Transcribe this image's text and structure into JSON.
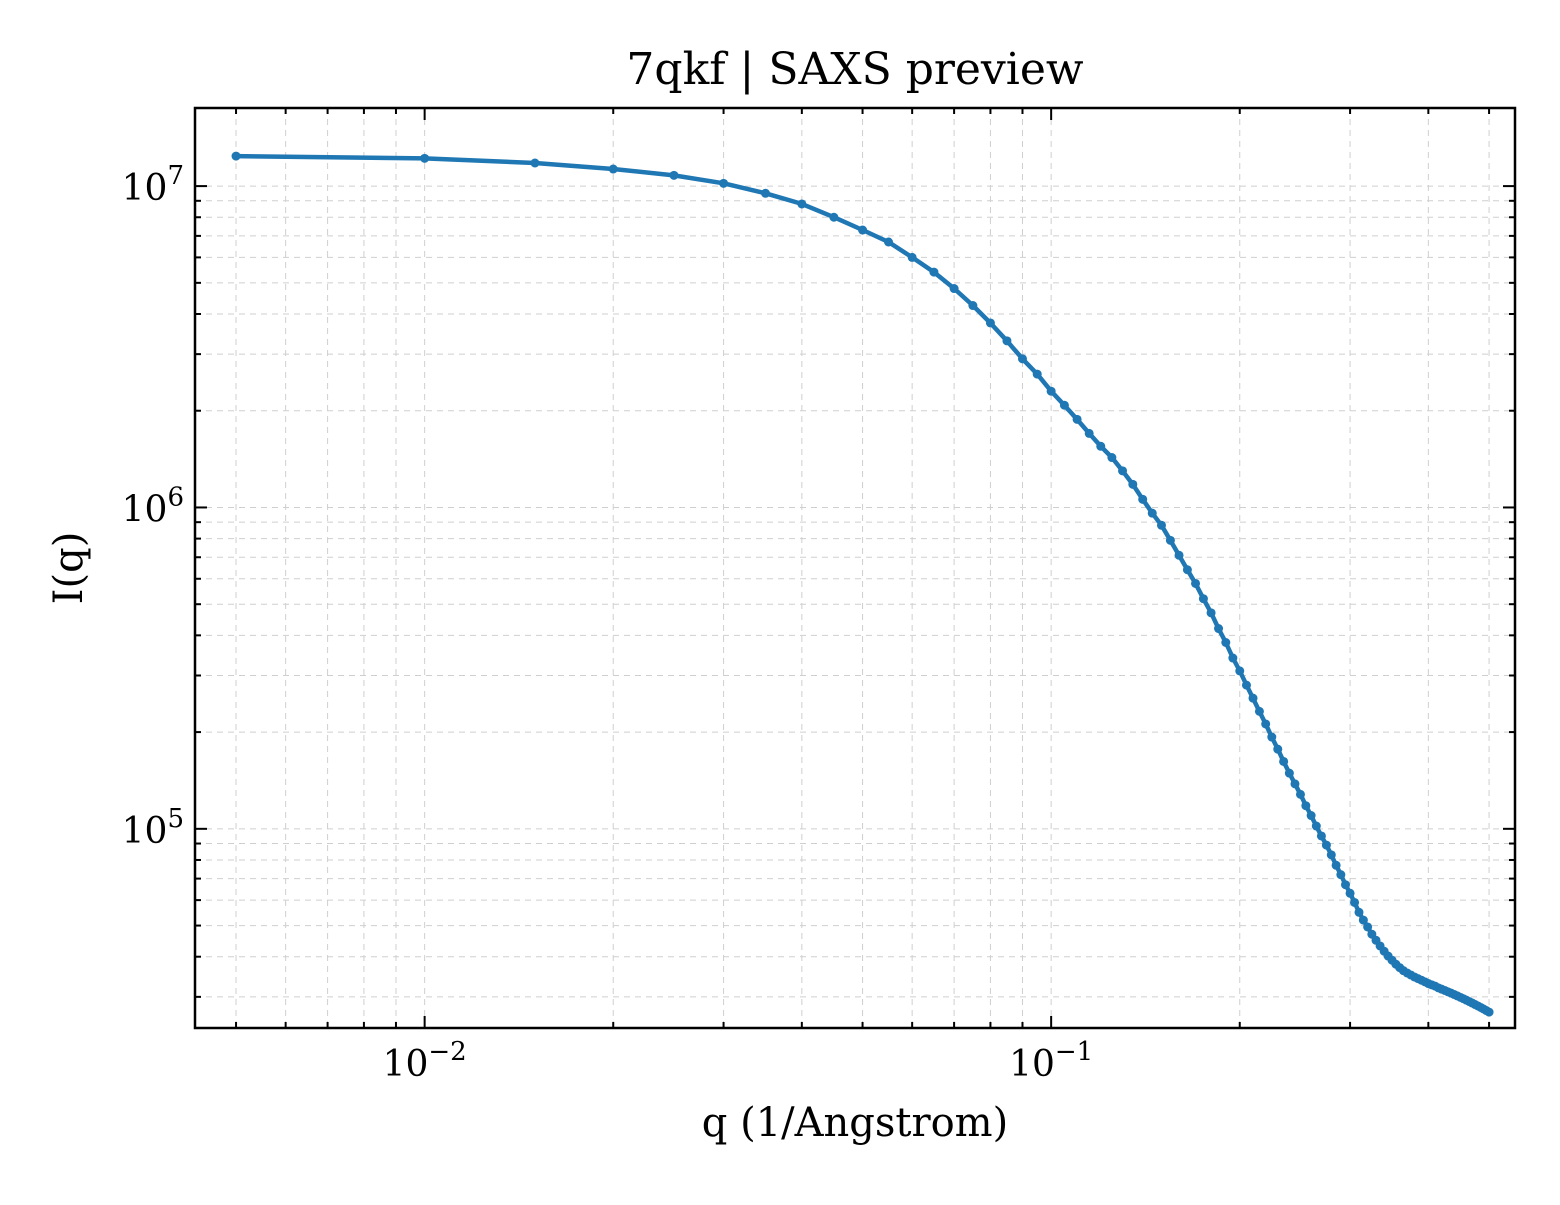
{
  "chart_data": {
    "type": "line",
    "title": "7qkf | SAXS preview",
    "xlabel": "q (1/Angstrom)",
    "ylabel": "I(q)",
    "xscale": "log",
    "yscale": "log",
    "xlim": [
      0.0043,
      0.55
    ],
    "ylim": [
      24000,
      17500000
    ],
    "grid": true,
    "grid_which": "both",
    "legend": "none",
    "x_tick_labels": [
      "10^-2",
      "10^-1"
    ],
    "y_tick_labels": [
      "10^5",
      "10^6",
      "10^7"
    ],
    "series": [
      {
        "color": "#1f77b4",
        "marker": "circle",
        "x": [
          0.005,
          0.01,
          0.015,
          0.02,
          0.025,
          0.03,
          0.035,
          0.04,
          0.045,
          0.05,
          0.055,
          0.06,
          0.065,
          0.07,
          0.075,
          0.08,
          0.085,
          0.09,
          0.095,
          0.1,
          0.105,
          0.11,
          0.115,
          0.12,
          0.125,
          0.13,
          0.135,
          0.14,
          0.145,
          0.15,
          0.155,
          0.16,
          0.165,
          0.17,
          0.175,
          0.18,
          0.185,
          0.19,
          0.195,
          0.2,
          0.205,
          0.21,
          0.215,
          0.22,
          0.225,
          0.23,
          0.235,
          0.24,
          0.245,
          0.25,
          0.255,
          0.26,
          0.265,
          0.27,
          0.275,
          0.28,
          0.285,
          0.29,
          0.295,
          0.3,
          0.305,
          0.31,
          0.315,
          0.32,
          0.325,
          0.33,
          0.335,
          0.34,
          0.345,
          0.35,
          0.355,
          0.36,
          0.365,
          0.37,
          0.375,
          0.38,
          0.385,
          0.39,
          0.395,
          0.4,
          0.405,
          0.41,
          0.415,
          0.42,
          0.425,
          0.43,
          0.435,
          0.44,
          0.445,
          0.45,
          0.455,
          0.46,
          0.465,
          0.47,
          0.475,
          0.48,
          0.485,
          0.49,
          0.495,
          0.5
        ],
        "y": [
          12400000,
          12200000,
          11800000,
          11300000,
          10800000,
          10200000,
          9500000,
          8800000,
          8000000,
          7300000,
          6700000,
          6000000,
          5400000,
          4800000,
          4250000,
          3750000,
          3300000,
          2900000,
          2600000,
          2300000,
          2080000,
          1880000,
          1700000,
          1550000,
          1430000,
          1300000,
          1180000,
          1060000,
          960000,
          880000,
          790000,
          710000,
          640000,
          580000,
          520000,
          470000,
          420000,
          380000,
          340000,
          310000,
          280000,
          255000,
          232000,
          212000,
          193000,
          177000,
          162000,
          149000,
          138000,
          128000,
          118000,
          110000,
          102000,
          95000,
          89000,
          83000,
          77000,
          72000,
          67000,
          63000,
          59000,
          55000,
          52000,
          49500,
          47000,
          45000,
          43200,
          41600,
          40200,
          39000,
          37900,
          37000,
          36200,
          35600,
          35100,
          34600,
          34200,
          33800,
          33400,
          33000,
          32700,
          32400,
          32000,
          31700,
          31400,
          31100,
          30800,
          30500,
          30200,
          29900,
          29600,
          29300,
          29000,
          28700,
          28400,
          28100,
          27800,
          27500,
          27200,
          26900
        ]
      }
    ]
  }
}
